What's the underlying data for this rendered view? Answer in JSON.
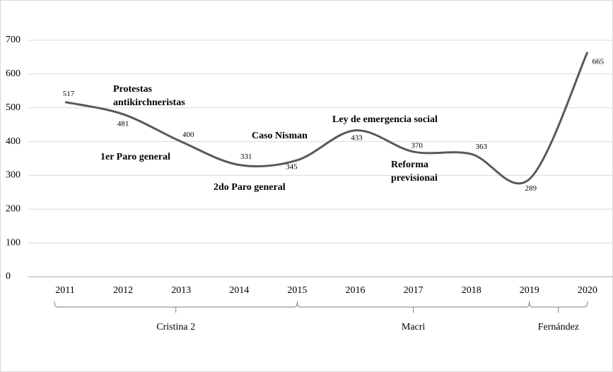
{
  "chart_data": {
    "type": "line",
    "categories": [
      "2011",
      "2012",
      "2013",
      "2014",
      "2015",
      "2016",
      "2017",
      "2018",
      "2019",
      "2020"
    ],
    "series": [
      {
        "color": "#595959",
        "values": [
          517,
          481,
          400,
          331,
          345,
          433,
          370,
          363,
          289,
          665
        ]
      }
    ],
    "ylim": [
      0,
      700
    ],
    "yticks": [
      0,
      100,
      200,
      300,
      400,
      500,
      600,
      700
    ],
    "grid": true,
    "annotations": [
      "Protestas",
      "antikirchneristas",
      "1er Paro general",
      "2do Paro general",
      "Caso Nisman",
      "Ley de emergencia social",
      "Reforma",
      "previsional"
    ],
    "periods": [
      {
        "label": "Cristina 2",
        "from": "2011",
        "to": "2015"
      },
      {
        "label": "Macri",
        "from": "2015",
        "to": "2019"
      },
      {
        "label": "Fernández",
        "from": "2019",
        "to": "2020"
      }
    ]
  }
}
